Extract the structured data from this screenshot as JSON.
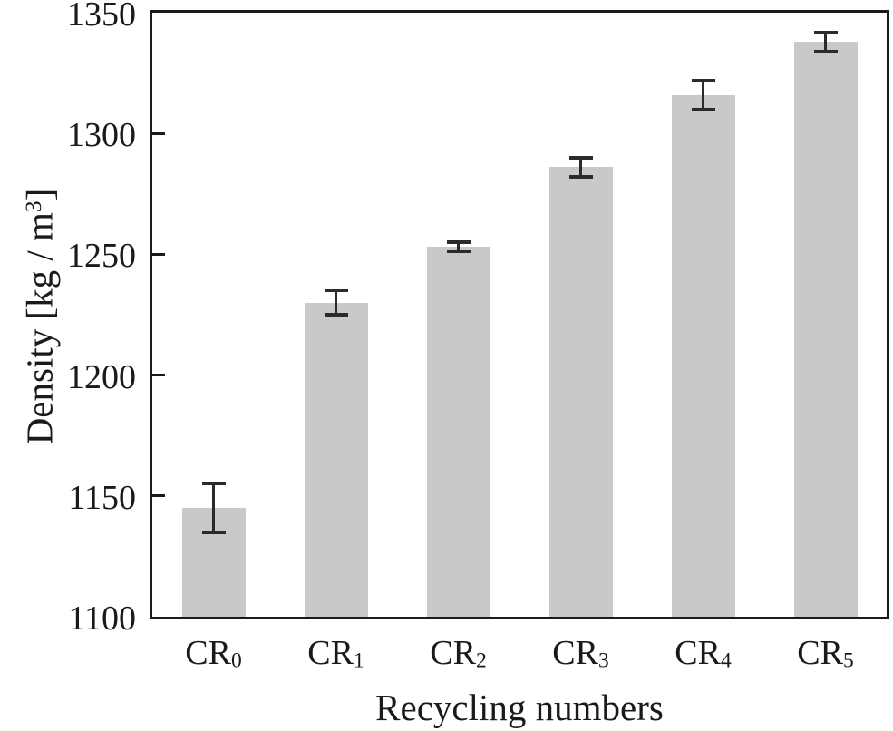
{
  "chart_data": {
    "type": "bar",
    "title": "",
    "xlabel": "Recycling numbers",
    "ylabel": "Density [kg / m^3]",
    "ylabel_parts": {
      "pre": "Density [kg / m",
      "sup": "3",
      "post": "]"
    },
    "categories": [
      {
        "base": "CR",
        "sub": "0"
      },
      {
        "base": "CR",
        "sub": "1"
      },
      {
        "base": "CR",
        "sub": "2"
      },
      {
        "base": "CR",
        "sub": "3"
      },
      {
        "base": "CR",
        "sub": "4"
      },
      {
        "base": "CR",
        "sub": "5"
      }
    ],
    "values": [
      1145,
      1230,
      1253,
      1286,
      1316,
      1338
    ],
    "errors": [
      10,
      5,
      2,
      4,
      6,
      4
    ],
    "ylim": [
      1100,
      1350
    ],
    "yticks": [
      1100,
      1150,
      1200,
      1250,
      1300,
      1350
    ],
    "grid": false,
    "legend": false,
    "colors": {
      "bar": "#c9c9c9",
      "axis": "#1a1a1a",
      "error": "#2b2b2b",
      "text": "#1a1a1a"
    }
  }
}
